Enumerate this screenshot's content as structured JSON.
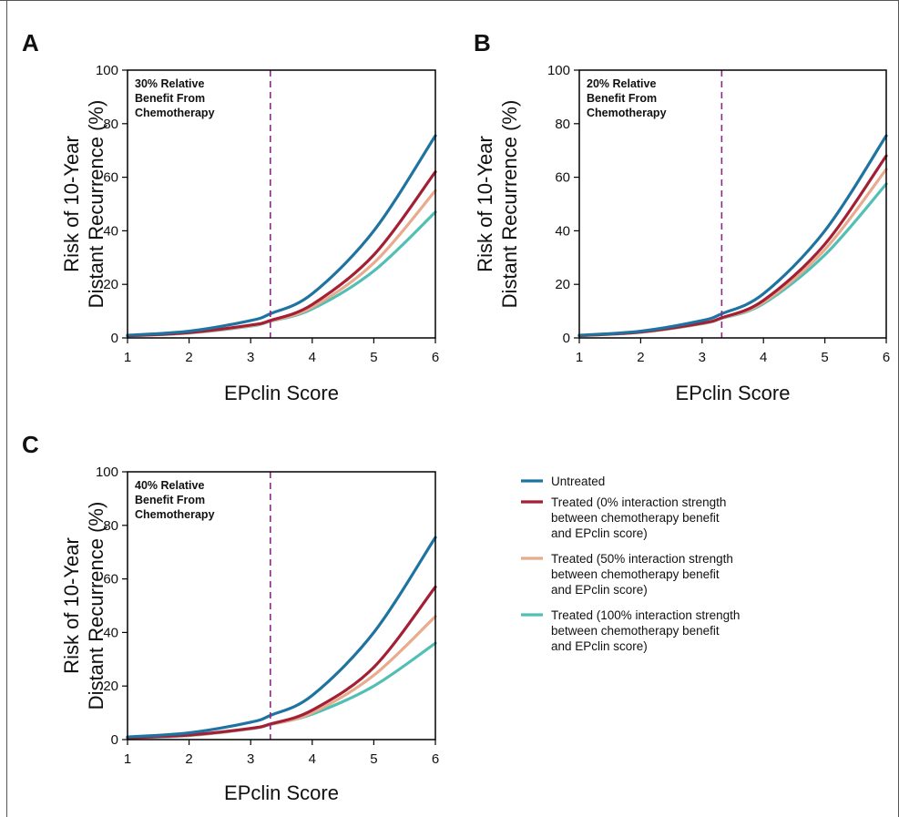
{
  "chart_data": [
    {
      "panel": "A",
      "type": "line",
      "annotation": [
        "30% Relative",
        "Benefit From",
        "Chemotherapy"
      ],
      "xlabel": "EPclin Score",
      "ylabel": [
        "Risk of 10-Year",
        "Distant Recurrence (%)"
      ],
      "xlim": [
        1,
        6
      ],
      "ylim": [
        0,
        100
      ],
      "xticks": [
        1,
        2,
        3,
        4,
        5,
        6
      ],
      "yticks": [
        0,
        20,
        40,
        60,
        80,
        100
      ],
      "threshold_x": 3.32,
      "x": [
        1,
        2,
        3,
        3.32,
        4,
        5,
        6
      ],
      "series": [
        {
          "key": "untreated",
          "values": [
            1,
            2.5,
            6.5,
            9,
            16.5,
            40,
            75.5
          ]
        },
        {
          "key": "t0",
          "values": [
            0.8,
            2,
            4.8,
            6.5,
            12.5,
            31,
            62
          ]
        },
        {
          "key": "t50",
          "values": [
            0.8,
            1.9,
            4.6,
            6.3,
            11.5,
            28,
            55
          ]
        },
        {
          "key": "t100",
          "values": [
            0.8,
            1.8,
            4.4,
            6.2,
            10.8,
            25,
            47
          ]
        }
      ]
    },
    {
      "panel": "B",
      "type": "line",
      "annotation": [
        "20% Relative",
        "Benefit From",
        "Chemotherapy"
      ],
      "xlabel": "EPclin Score",
      "ylabel": [
        "Risk of 10-Year",
        "Distant Recurrence (%)"
      ],
      "xlim": [
        1,
        6
      ],
      "ylim": [
        0,
        100
      ],
      "xticks": [
        1,
        2,
        3,
        4,
        5,
        6
      ],
      "yticks": [
        0,
        20,
        40,
        60,
        80,
        100
      ],
      "threshold_x": 3.32,
      "x": [
        1,
        2,
        3,
        3.32,
        4,
        5,
        6
      ],
      "series": [
        {
          "key": "untreated",
          "values": [
            1,
            2.5,
            6.5,
            9,
            16.5,
            40,
            75.5
          ]
        },
        {
          "key": "t0",
          "values": [
            0.9,
            2.2,
            5.5,
            7.5,
            14,
            35,
            68
          ]
        },
        {
          "key": "t50",
          "values": [
            0.9,
            2.1,
            5.4,
            7.4,
            13.3,
            33,
            63
          ]
        },
        {
          "key": "t100",
          "values": [
            0.9,
            2.1,
            5.3,
            7.3,
            12.8,
            31,
            57.5
          ]
        }
      ]
    },
    {
      "panel": "C",
      "type": "line",
      "annotation": [
        "40% Relative",
        "Benefit From",
        "Chemotherapy"
      ],
      "xlabel": "EPclin Score",
      "ylabel": [
        "Risk of 10-Year",
        "Distant Recurrence (%)"
      ],
      "xlim": [
        1,
        6
      ],
      "ylim": [
        0,
        100
      ],
      "xticks": [
        1,
        2,
        3,
        4,
        5,
        6
      ],
      "yticks": [
        0,
        20,
        40,
        60,
        80,
        100
      ],
      "threshold_x": 3.32,
      "x": [
        1,
        2,
        3,
        3.32,
        4,
        5,
        6
      ],
      "series": [
        {
          "key": "untreated",
          "values": [
            1,
            2.5,
            6.5,
            9,
            16.5,
            40,
            75.5
          ]
        },
        {
          "key": "t0",
          "values": [
            0.7,
            1.7,
            4.2,
            5.8,
            11,
            27,
            57
          ]
        },
        {
          "key": "t50",
          "values": [
            0.7,
            1.6,
            4.1,
            5.7,
            10,
            24,
            46
          ]
        },
        {
          "key": "t100",
          "values": [
            0.7,
            1.5,
            4,
            5.6,
            9.5,
            20,
            36
          ]
        }
      ]
    }
  ],
  "legend": [
    {
      "key": "untreated",
      "color": "#1e73a0",
      "lines": [
        "Untreated"
      ]
    },
    {
      "key": "t0",
      "color": "#a31f34",
      "lines": [
        "Treated (0% interaction strength",
        "between chemotherapy benefit",
        "and EPclin score)"
      ]
    },
    {
      "key": "t50",
      "color": "#e8ab8e",
      "lines": [
        "Treated (50% interaction strength",
        "between chemotherapy benefit",
        "and EPclin score)"
      ]
    },
    {
      "key": "t100",
      "color": "#52bfb5",
      "lines": [
        "Treated (100% interaction strength",
        "between chemotherapy benefit",
        "and EPclin score)"
      ]
    }
  ],
  "colors": {
    "untreated": "#1e73a0",
    "t0": "#a31f34",
    "t50": "#e8ab8e",
    "t100": "#52bfb5",
    "threshold": "#8a2a87"
  }
}
